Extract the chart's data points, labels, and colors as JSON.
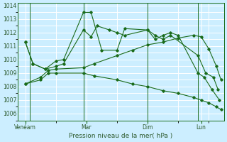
{
  "xlabel": "Pression niveau de la mer( hPa )",
  "bg_color": "#cceeff",
  "grid_color": "#ffffff",
  "line_color": "#1a6b1a",
  "ylim": [
    1005.5,
    1014.2
  ],
  "yticks": [
    1006,
    1007,
    1008,
    1009,
    1010,
    1011,
    1012,
    1013,
    1014
  ],
  "xtick_labels": [
    "Venéam",
    "Mar",
    "Dim",
    "Lun"
  ],
  "xtick_positions": [
    0.5,
    4.5,
    8.5,
    12.0
  ],
  "xlim": [
    0,
    13.5
  ],
  "vlines_x": [
    0.8,
    4.3,
    8.5,
    11.8
  ],
  "series": [
    {
      "x": [
        0.5,
        1.0,
        1.8,
        2.5,
        3.0,
        4.3,
        4.8,
        5.5,
        6.5,
        7.0,
        8.5,
        9.0,
        9.5,
        10.0,
        11.8,
        12.3,
        12.8,
        13.1
      ],
      "y": [
        1011.3,
        1009.7,
        1009.3,
        1009.9,
        1010.0,
        1013.5,
        1013.5,
        1010.7,
        1010.7,
        1012.3,
        1012.2,
        1011.8,
        1011.5,
        1011.8,
        1010.3,
        1009.0,
        1008.7,
        1007.8
      ]
    },
    {
      "x": [
        0.5,
        1.0,
        1.8,
        2.5,
        3.0,
        4.3,
        4.8,
        5.2,
        6.0,
        6.5,
        7.0,
        8.5,
        9.0,
        9.5,
        10.0,
        10.5,
        11.8,
        12.2,
        12.7,
        13.2
      ],
      "y": [
        1011.3,
        1009.7,
        1009.3,
        1009.5,
        1009.7,
        1012.2,
        1011.7,
        1012.5,
        1012.2,
        1012.0,
        1011.8,
        1012.2,
        1011.5,
        1011.8,
        1012.0,
        1011.8,
        1009.0,
        1008.7,
        1007.8,
        1007.0
      ]
    },
    {
      "x": [
        0.5,
        1.5,
        2.0,
        2.5,
        4.3,
        5.0,
        6.5,
        7.5,
        8.5,
        9.5,
        10.5,
        11.5,
        12.0,
        12.5,
        13.0,
        13.3
      ],
      "y": [
        1008.2,
        1008.7,
        1009.2,
        1009.3,
        1009.4,
        1009.7,
        1010.3,
        1010.7,
        1011.1,
        1011.3,
        1011.6,
        1011.8,
        1011.7,
        1010.8,
        1009.5,
        1008.5
      ]
    },
    {
      "x": [
        0.5,
        1.5,
        2.0,
        2.5,
        4.3,
        5.0,
        6.5,
        7.5,
        8.5,
        9.5,
        10.5,
        11.5,
        12.0,
        12.5,
        13.0,
        13.3
      ],
      "y": [
        1008.2,
        1008.5,
        1009.0,
        1009.0,
        1009.0,
        1008.8,
        1008.5,
        1008.2,
        1008.0,
        1007.7,
        1007.5,
        1007.2,
        1007.0,
        1006.8,
        1006.5,
        1006.3
      ]
    }
  ]
}
